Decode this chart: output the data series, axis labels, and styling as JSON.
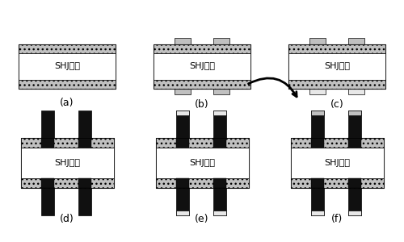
{
  "panels": [
    "(a)",
    "(b)",
    "(c)",
    "(d)",
    "(e)",
    "(f)"
  ],
  "label_text": "SHJ衬底",
  "bg": "#ffffff",
  "gray_hatch": "#c0c0c0",
  "gray_dark": "#888888",
  "light": "#e8e8e8",
  "black": "#101010",
  "white": "#ffffff",
  "font_size": 8
}
